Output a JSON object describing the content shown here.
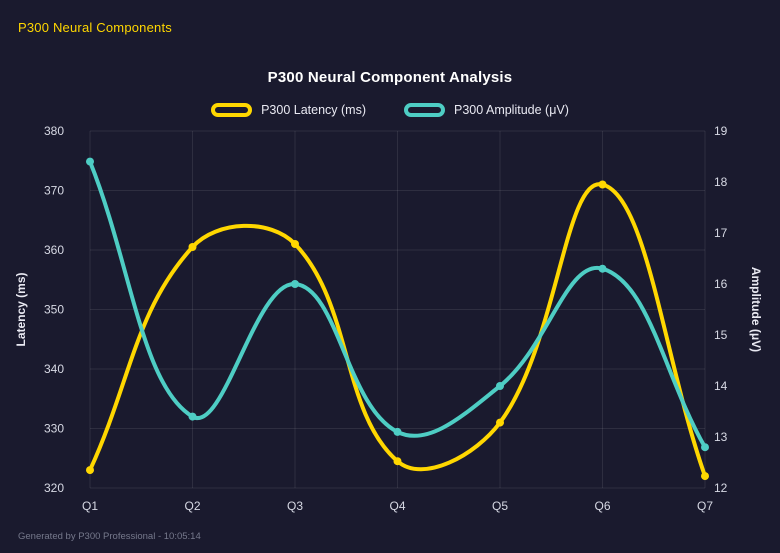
{
  "page": {
    "header": "P300 Neural Components",
    "footer": "Generated by P300 Professional - 10:05:14",
    "background_color": "#1a1a2e",
    "accent_color": "#ffd700"
  },
  "chart_data": {
    "type": "line",
    "title": "P300 Neural Component Analysis",
    "categories": [
      "Q1",
      "Q2",
      "Q3",
      "Q4",
      "Q5",
      "Q6",
      "Q7"
    ],
    "series": [
      {
        "name": "P300 Latency (ms)",
        "color": "#ffd700",
        "axis": "left",
        "values": [
          323,
          360.5,
          361,
          324.5,
          331,
          371,
          322
        ]
      },
      {
        "name": "P300 Amplitude (μV)",
        "color": "#4ecdc4",
        "axis": "right",
        "values": [
          18.4,
          13.4,
          16.0,
          13.1,
          14.0,
          16.3,
          12.8
        ]
      }
    ],
    "left_axis": {
      "label": "Latency (ms)",
      "min": 320,
      "max": 380,
      "ticks": [
        320,
        330,
        340,
        350,
        360,
        370,
        380
      ]
    },
    "right_axis": {
      "label": "Amplitude (μV)",
      "min": 12,
      "max": 19,
      "ticks": [
        12,
        13,
        14,
        15,
        16,
        17,
        18,
        19
      ]
    },
    "grid": true,
    "legend_position": "top",
    "line_tension": 0.4
  }
}
